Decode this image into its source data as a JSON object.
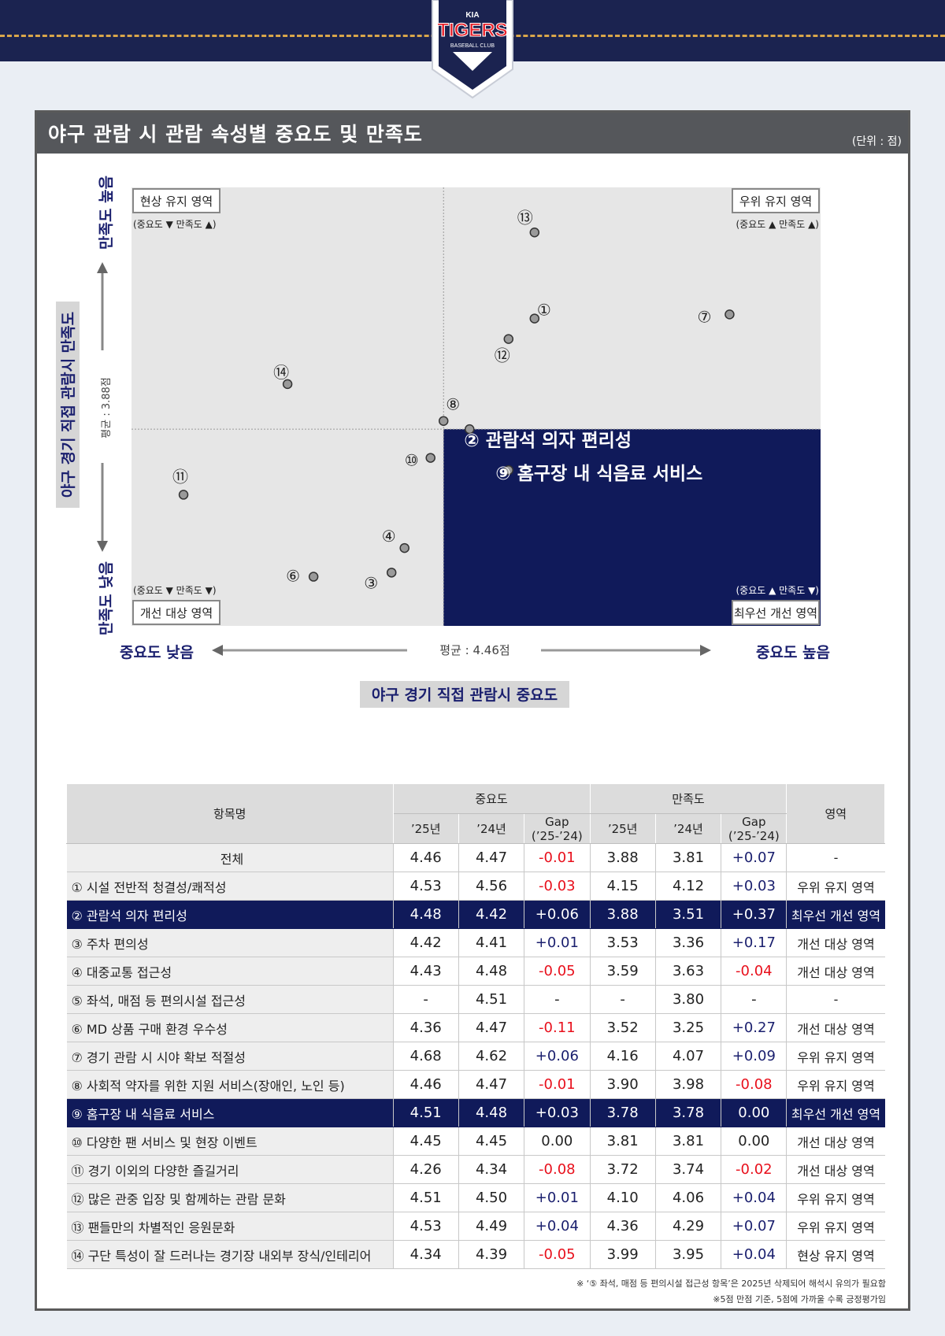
{
  "header": {
    "logo_text": "TIGERS",
    "logo_sub": "BASEBALL CLUB",
    "logo_brand": "KIA"
  },
  "panel": {
    "title": "야구 관람 시 관람 속성별 중요도 및 만족도",
    "unit": "(단위 : 점)"
  },
  "chart_data": {
    "type": "scatter",
    "title": "",
    "xlabel": "야구 경기 직접 관람시 중요도",
    "ylabel": "야구 경기 직접 관람시 만족도",
    "x_low": "중요도 낮음",
    "x_high": "중요도 높음",
    "y_high": "만족도 높음",
    "y_low": "만족도 낮음",
    "x_mean_label": "평균 :  4.46점",
    "y_mean_label": "평균 : 3.88점",
    "x_mean": 4.46,
    "y_mean": 3.88,
    "xlim": [
      4.22,
      4.75
    ],
    "ylim": [
      3.4,
      4.47
    ],
    "quadrants": [
      {
        "name": "현상 유지 영역",
        "sub": "(중요도 ▼ 만족도 ▲)",
        "pos": "top-left"
      },
      {
        "name": "우위 유지 영역",
        "sub": "(중요도 ▲ 만족도 ▲)",
        "pos": "top-right"
      },
      {
        "name": "개선 대상 영역",
        "sub": "(중요도 ▼ 만족도 ▼)",
        "pos": "bottom-left"
      },
      {
        "name": "최우선 개선 영역",
        "sub": "(중요도 ▲ 만족도 ▼)",
        "pos": "bottom-right"
      }
    ],
    "points": [
      {
        "label": "①",
        "x": 4.53,
        "y": 4.15
      },
      {
        "label": "②",
        "x": 4.48,
        "y": 3.88
      },
      {
        "label": "③",
        "x": 4.42,
        "y": 3.53
      },
      {
        "label": "④",
        "x": 4.43,
        "y": 3.59
      },
      {
        "label": "⑥",
        "x": 4.36,
        "y": 3.52
      },
      {
        "label": "⑦",
        "x": 4.68,
        "y": 4.16
      },
      {
        "label": "⑧",
        "x": 4.46,
        "y": 3.9
      },
      {
        "label": "⑨",
        "x": 4.51,
        "y": 3.78
      },
      {
        "label": "⑩",
        "x": 4.45,
        "y": 3.81
      },
      {
        "label": "⑪",
        "x": 4.26,
        "y": 3.72
      },
      {
        "label": "⑫",
        "x": 4.51,
        "y": 4.1
      },
      {
        "label": "⑬",
        "x": 4.53,
        "y": 4.36
      },
      {
        "label": "⑭",
        "x": 4.34,
        "y": 3.99
      }
    ],
    "highlight_labels": [
      "② 관람석 의자 편리성",
      "⑨ 홈구장 내 식음료 서비스"
    ]
  },
  "table": {
    "col_name": "항목명",
    "group_importance": "중요도",
    "group_satisfaction": "만족도",
    "col_area": "영역",
    "col_25": "’25년",
    "col_24": "’24년",
    "col_gap1": "Gap",
    "col_gap2": "(’25-’24)",
    "rows": [
      {
        "name": "전체",
        "i25": "4.46",
        "i24": "4.47",
        "ig": "-0.01",
        "s25": "3.88",
        "s24": "3.81",
        "sg": "+0.07",
        "area": "-"
      },
      {
        "name": "① 시설 전반적 청결성/쾌적성",
        "i25": "4.53",
        "i24": "4.56",
        "ig": "-0.03",
        "s25": "4.15",
        "s24": "4.12",
        "sg": "+0.03",
        "area": "우위 유지 영역"
      },
      {
        "name": "② 관람석 의자 편리성",
        "i25": "4.48",
        "i24": "4.42",
        "ig": "+0.06",
        "s25": "3.88",
        "s24": "3.51",
        "sg": "+0.37",
        "area": "최우선 개선 영역",
        "hl": true
      },
      {
        "name": "③ 주차 편의성",
        "i25": "4.42",
        "i24": "4.41",
        "ig": "+0.01",
        "s25": "3.53",
        "s24": "3.36",
        "sg": "+0.17",
        "area": "개선 대상 영역"
      },
      {
        "name": "④ 대중교통 접근성",
        "i25": "4.43",
        "i24": "4.48",
        "ig": "-0.05",
        "s25": "3.59",
        "s24": "3.63",
        "sg": "-0.04",
        "area": "개선 대상 영역"
      },
      {
        "name": "⑤ 좌석, 매점 등 편의시설 접근성",
        "i25": "-",
        "i24": "4.51",
        "ig": "-",
        "s25": "-",
        "s24": "3.80",
        "sg": "-",
        "area": "-"
      },
      {
        "name": "⑥ MD 상품 구매 환경 우수성",
        "i25": "4.36",
        "i24": "4.47",
        "ig": "-0.11",
        "s25": "3.52",
        "s24": "3.25",
        "sg": "+0.27",
        "area": "개선 대상 영역"
      },
      {
        "name": "⑦ 경기 관람 시 시야 확보 적절성",
        "i25": "4.68",
        "i24": "4.62",
        "ig": "+0.06",
        "s25": "4.16",
        "s24": "4.07",
        "sg": "+0.09",
        "area": "우위 유지 영역"
      },
      {
        "name": "⑧ 사회적 약자를 위한 지원 서비스(장애인, 노인 등)",
        "i25": "4.46",
        "i24": "4.47",
        "ig": "-0.01",
        "s25": "3.90",
        "s24": "3.98",
        "sg": "-0.08",
        "area": "우위 유지 영역"
      },
      {
        "name": "⑨ 홈구장 내 식음료 서비스",
        "i25": "4.51",
        "i24": "4.48",
        "ig": "+0.03",
        "s25": "3.78",
        "s24": "3.78",
        "sg": "0.00",
        "area": "최우선 개선 영역",
        "hl": true
      },
      {
        "name": "⑩ 다양한 팬 서비스 및 현장 이벤트",
        "i25": "4.45",
        "i24": "4.45",
        "ig": "0.00",
        "s25": "3.81",
        "s24": "3.81",
        "sg": "0.00",
        "area": "개선 대상 영역"
      },
      {
        "name": "⑪ 경기 이외의 다양한 즐길거리",
        "i25": "4.26",
        "i24": "4.34",
        "ig": "-0.08",
        "s25": "3.72",
        "s24": "3.74",
        "sg": "-0.02",
        "area": "개선 대상 영역"
      },
      {
        "name": "⑫ 많은 관중 입장 및 함께하는 관람 문화",
        "i25": "4.51",
        "i24": "4.50",
        "ig": "+0.01",
        "s25": "4.10",
        "s24": "4.06",
        "sg": "+0.04",
        "area": "우위 유지 영역"
      },
      {
        "name": "⑬ 팬들만의 차별적인 응원문화",
        "i25": "4.53",
        "i24": "4.49",
        "ig": "+0.04",
        "s25": "4.36",
        "s24": "4.29",
        "sg": "+0.07",
        "area": "우위 유지 영역"
      },
      {
        "name": "⑭ 구단 특성이 잘 드러나는 경기장 내외부 장식/인테리어",
        "i25": "4.34",
        "i24": "4.39",
        "ig": "-0.05",
        "s25": "3.99",
        "s24": "3.95",
        "sg": "+0.04",
        "area": "현상 유지 영역"
      }
    ]
  },
  "notes": [
    "※ ‘⑤ 좌석, 매점 등 편의시설 접근성 항목’은 2025년 삭제되어 해석시 유의가 필요함",
    "※5점 만점 기준, 5점에 가까울 수록 긍정평가임"
  ]
}
